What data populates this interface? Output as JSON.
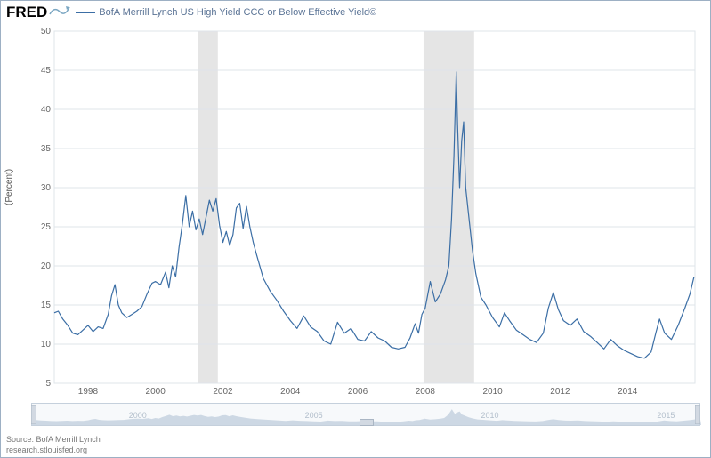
{
  "header": {
    "logo_text": "FRED",
    "series_label": "BofA Merrill Lynch US High Yield CCC or Below Effective Yield©",
    "series_color": "#3b6ea5",
    "legend_text_color": "#5a7395"
  },
  "chart": {
    "type": "line",
    "background_color": "#ffffff",
    "border_color": "#9db0c4",
    "gridline_color": "#dfe4ea",
    "axis_label_color": "#666666",
    "axis_label_fontsize": 10,
    "ylabel": "(Percent)",
    "ylim": [
      5,
      50
    ],
    "ytick_step": 5,
    "yticks": [
      5,
      10,
      15,
      20,
      25,
      30,
      35,
      40,
      45,
      50
    ],
    "xlim": [
      1997,
      2016
    ],
    "xticks": [
      1998,
      2000,
      2002,
      2004,
      2006,
      2008,
      2010,
      2012,
      2014
    ],
    "line_width": 1.2,
    "line_color": "#3b6ea5",
    "recessions": [
      {
        "start": 2001.25,
        "end": 2001.85,
        "fill": "#e5e5e5"
      },
      {
        "start": 2007.95,
        "end": 2009.45,
        "fill": "#e5e5e5"
      }
    ],
    "data": [
      [
        1997.0,
        14.0
      ],
      [
        1997.12,
        14.2
      ],
      [
        1997.25,
        13.2
      ],
      [
        1997.4,
        12.4
      ],
      [
        1997.55,
        11.4
      ],
      [
        1997.7,
        11.2
      ],
      [
        1997.85,
        11.8
      ],
      [
        1998.0,
        12.4
      ],
      [
        1998.15,
        11.6
      ],
      [
        1998.3,
        12.2
      ],
      [
        1998.45,
        12.0
      ],
      [
        1998.6,
        13.8
      ],
      [
        1998.7,
        16.2
      ],
      [
        1998.8,
        17.6
      ],
      [
        1998.9,
        15.0
      ],
      [
        1999.0,
        14.0
      ],
      [
        1999.15,
        13.4
      ],
      [
        1999.3,
        13.8
      ],
      [
        1999.45,
        14.2
      ],
      [
        1999.6,
        14.8
      ],
      [
        1999.75,
        16.4
      ],
      [
        1999.9,
        17.8
      ],
      [
        2000.0,
        18.0
      ],
      [
        2000.15,
        17.6
      ],
      [
        2000.3,
        19.2
      ],
      [
        2000.4,
        17.2
      ],
      [
        2000.5,
        20.0
      ],
      [
        2000.6,
        18.6
      ],
      [
        2000.7,
        22.4
      ],
      [
        2000.8,
        25.4
      ],
      [
        2000.9,
        29.0
      ],
      [
        2001.0,
        25.0
      ],
      [
        2001.1,
        27.0
      ],
      [
        2001.2,
        24.6
      ],
      [
        2001.3,
        26.0
      ],
      [
        2001.4,
        24.0
      ],
      [
        2001.5,
        26.2
      ],
      [
        2001.6,
        28.4
      ],
      [
        2001.7,
        27.0
      ],
      [
        2001.8,
        28.6
      ],
      [
        2001.9,
        25.2
      ],
      [
        2002.0,
        23.0
      ],
      [
        2002.1,
        24.4
      ],
      [
        2002.2,
        22.6
      ],
      [
        2002.3,
        24.0
      ],
      [
        2002.4,
        27.4
      ],
      [
        2002.5,
        28.0
      ],
      [
        2002.6,
        24.8
      ],
      [
        2002.7,
        27.6
      ],
      [
        2002.8,
        25.0
      ],
      [
        2002.9,
        23.0
      ],
      [
        2003.0,
        21.4
      ],
      [
        2003.2,
        18.4
      ],
      [
        2003.4,
        16.8
      ],
      [
        2003.6,
        15.6
      ],
      [
        2003.8,
        14.2
      ],
      [
        2004.0,
        13.0
      ],
      [
        2004.2,
        12.0
      ],
      [
        2004.4,
        13.6
      ],
      [
        2004.6,
        12.2
      ],
      [
        2004.8,
        11.6
      ],
      [
        2005.0,
        10.4
      ],
      [
        2005.2,
        10.0
      ],
      [
        2005.4,
        12.8
      ],
      [
        2005.6,
        11.4
      ],
      [
        2005.8,
        12.0
      ],
      [
        2006.0,
        10.6
      ],
      [
        2006.2,
        10.4
      ],
      [
        2006.4,
        11.6
      ],
      [
        2006.6,
        10.8
      ],
      [
        2006.8,
        10.4
      ],
      [
        2007.0,
        9.6
      ],
      [
        2007.2,
        9.4
      ],
      [
        2007.4,
        9.6
      ],
      [
        2007.55,
        10.8
      ],
      [
        2007.7,
        12.6
      ],
      [
        2007.8,
        11.4
      ],
      [
        2007.9,
        13.8
      ],
      [
        2008.0,
        14.6
      ],
      [
        2008.15,
        18.0
      ],
      [
        2008.3,
        15.4
      ],
      [
        2008.45,
        16.4
      ],
      [
        2008.6,
        18.2
      ],
      [
        2008.7,
        20.0
      ],
      [
        2008.78,
        26.0
      ],
      [
        2008.85,
        34.0
      ],
      [
        2008.92,
        44.8
      ],
      [
        2008.96,
        38.0
      ],
      [
        2009.02,
        30.0
      ],
      [
        2009.08,
        36.0
      ],
      [
        2009.14,
        38.4
      ],
      [
        2009.2,
        30.0
      ],
      [
        2009.3,
        26.0
      ],
      [
        2009.4,
        22.0
      ],
      [
        2009.5,
        19.0
      ],
      [
        2009.65,
        16.0
      ],
      [
        2009.8,
        15.0
      ],
      [
        2010.0,
        13.4
      ],
      [
        2010.2,
        12.2
      ],
      [
        2010.35,
        14.0
      ],
      [
        2010.5,
        13.0
      ],
      [
        2010.7,
        11.8
      ],
      [
        2010.9,
        11.2
      ],
      [
        2011.1,
        10.6
      ],
      [
        2011.3,
        10.2
      ],
      [
        2011.5,
        11.4
      ],
      [
        2011.65,
        14.6
      ],
      [
        2011.8,
        16.6
      ],
      [
        2011.95,
        14.4
      ],
      [
        2012.1,
        13.0
      ],
      [
        2012.3,
        12.4
      ],
      [
        2012.5,
        13.2
      ],
      [
        2012.7,
        11.6
      ],
      [
        2012.9,
        11.0
      ],
      [
        2013.1,
        10.2
      ],
      [
        2013.3,
        9.4
      ],
      [
        2013.5,
        10.6
      ],
      [
        2013.7,
        9.8
      ],
      [
        2013.9,
        9.2
      ],
      [
        2014.1,
        8.8
      ],
      [
        2014.3,
        8.4
      ],
      [
        2014.5,
        8.2
      ],
      [
        2014.7,
        9.0
      ],
      [
        2014.85,
        11.6
      ],
      [
        2014.95,
        13.2
      ],
      [
        2015.1,
        11.4
      ],
      [
        2015.3,
        10.6
      ],
      [
        2015.5,
        12.4
      ],
      [
        2015.7,
        14.6
      ],
      [
        2015.85,
        16.4
      ],
      [
        2015.97,
        18.6
      ]
    ]
  },
  "overview": {
    "xticks": [
      2000,
      2005,
      2010,
      2015
    ],
    "tick_fontsize": 9,
    "tick_color": "#b3bfcc",
    "area_fill": "#c2cfde",
    "handle_fill": "#d2d9e2",
    "handle_border": "#aab6c4"
  },
  "footer": {
    "line1": "Source: BofA Merrill Lynch",
    "line2": "research.stlouisfed.org"
  }
}
